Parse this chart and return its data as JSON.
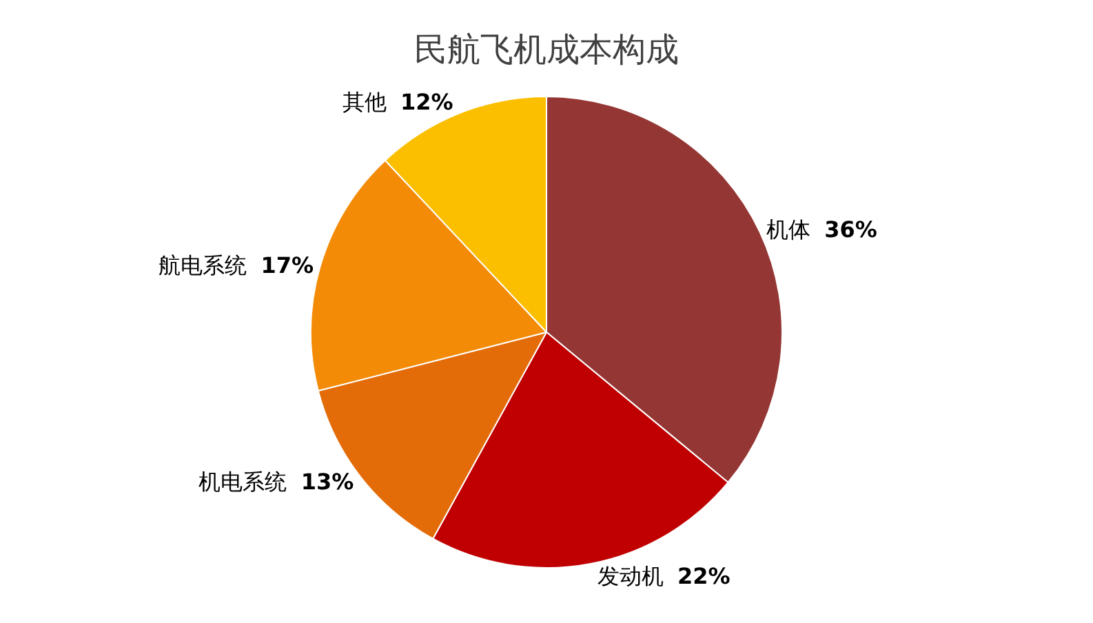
{
  "chart_data": {
    "type": "pie",
    "title": "民航飞机成本构成",
    "categories": [
      "机体",
      "发动机",
      "机电系统",
      "航电系统",
      "其他"
    ],
    "values": [
      36,
      22,
      13,
      17,
      12
    ],
    "value_labels": [
      "36%",
      "22%",
      "13%",
      "17%",
      "12%"
    ],
    "colors": [
      "#943634",
      "#c00000",
      "#e36c09",
      "#f38b07",
      "#fbbf00"
    ],
    "legend": false
  }
}
